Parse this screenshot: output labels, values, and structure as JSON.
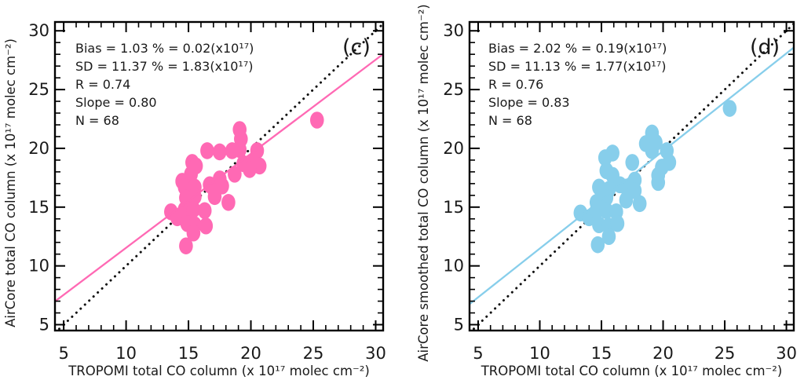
{
  "figure": {
    "background": "#ffffff",
    "text_color": "#1a1a1a",
    "frame_color": "#000000"
  },
  "chart_data": [
    {
      "type": "scatter",
      "panel_label": "(c)",
      "xlabel": "TROPOMI total CO column (x 10¹⁷ molec cm⁻²)",
      "ylabel": "AirCore total CO column (x 10¹⁷ molec cm⁻²)",
      "xlim": [
        4.3,
        30.6
      ],
      "ylim": [
        4.5,
        30.75
      ],
      "ticks": [
        5,
        10,
        15,
        20,
        25,
        30
      ],
      "minor_tick_step": 1,
      "grid": false,
      "marker_color": "#FF69B4",
      "stats_lines": [
        "Bias = 1.03 % = 0.02(x10¹⁷)",
        "SD = 11.37 % = 1.83(x10¹⁷)",
        "R = 0.74",
        "Slope = 0.80",
        "N = 68"
      ],
      "stats": {
        "bias_pct": 1.03,
        "bias_abs": 0.02,
        "sd_pct": 11.37,
        "sd_abs": 1.83,
        "r": 0.74,
        "slope": 0.8,
        "n": 68
      },
      "fit_line": {
        "slope": 0.8,
        "intercept": 3.54,
        "color": "#FF69B4"
      },
      "identity_line": {
        "color": "#111111",
        "style": "dotted"
      },
      "points": [
        [
          25.3,
          22.4
        ],
        [
          19.1,
          21.6
        ],
        [
          19.2,
          20.8
        ],
        [
          19.1,
          19.9
        ],
        [
          18.5,
          19.8
        ],
        [
          17.5,
          19.7
        ],
        [
          16.5,
          19.8
        ],
        [
          20.5,
          19.8
        ],
        [
          19.4,
          18.7
        ],
        [
          20.2,
          18.8
        ],
        [
          20.7,
          18.5
        ],
        [
          19.9,
          18.2
        ],
        [
          18.7,
          17.8
        ],
        [
          15.3,
          18.8
        ],
        [
          15.6,
          18.5
        ],
        [
          15.2,
          17.8
        ],
        [
          14.5,
          17.2
        ],
        [
          17.5,
          17.4
        ],
        [
          16.7,
          16.9
        ],
        [
          14.7,
          16.7
        ],
        [
          15.5,
          16.7
        ],
        [
          17.0,
          16.6
        ],
        [
          17.7,
          16.8
        ],
        [
          14.8,
          15.8
        ],
        [
          15.5,
          15.9
        ],
        [
          17.1,
          15.9
        ],
        [
          18.2,
          15.4
        ],
        [
          13.6,
          14.6
        ],
        [
          14.1,
          14.1
        ],
        [
          14.7,
          14.8
        ],
        [
          15.4,
          14.8
        ],
        [
          16.3,
          14.7
        ],
        [
          14.9,
          13.6
        ],
        [
          15.5,
          13.5
        ],
        [
          16.4,
          13.4
        ],
        [
          15.4,
          12.8
        ],
        [
          14.8,
          11.7
        ]
      ]
    },
    {
      "type": "scatter",
      "panel_label": "(d)",
      "xlabel": "TROPOMI total CO column (x 10¹⁷ molec cm⁻²)",
      "ylabel": "AirCore smoothed total CO column (x 10¹⁷ molec cm⁻²)",
      "xlim": [
        4.3,
        30.6
      ],
      "ylim": [
        4.5,
        30.75
      ],
      "ticks": [
        5,
        10,
        15,
        20,
        25,
        30
      ],
      "minor_tick_step": 1,
      "grid": false,
      "marker_color": "#87CEEB",
      "stats_lines": [
        "Bias = 2.02 % = 0.19(x10¹⁷)",
        "SD = 11.13 % = 1.77(x10¹⁷)",
        "R = 0.76",
        "Slope = 0.83",
        "N = 68"
      ],
      "stats": {
        "bias_pct": 2.02,
        "bias_abs": 0.19,
        "sd_pct": 11.13,
        "sd_abs": 1.77,
        "r": 0.76,
        "slope": 0.83,
        "n": 68
      },
      "fit_line": {
        "slope": 0.83,
        "intercept": 3.18,
        "color": "#87CEEB"
      },
      "identity_line": {
        "color": "#111111",
        "style": "dotted"
      },
      "points": [
        [
          25.4,
          23.4
        ],
        [
          19.1,
          21.3
        ],
        [
          19.4,
          20.5
        ],
        [
          18.6,
          20.4
        ],
        [
          19.1,
          19.8
        ],
        [
          20.3,
          19.8
        ],
        [
          15.9,
          19.6
        ],
        [
          15.3,
          19.2
        ],
        [
          17.5,
          18.8
        ],
        [
          20.5,
          18.8
        ],
        [
          19.9,
          18.4
        ],
        [
          19.6,
          17.7
        ],
        [
          15.9,
          17.7
        ],
        [
          15.4,
          18.1
        ],
        [
          17.7,
          17.3
        ],
        [
          19.6,
          17.1
        ],
        [
          16.5,
          16.9
        ],
        [
          14.8,
          16.7
        ],
        [
          15.6,
          16.5
        ],
        [
          17.0,
          16.7
        ],
        [
          17.7,
          16.4
        ],
        [
          14.6,
          15.4
        ],
        [
          15.4,
          15.8
        ],
        [
          17.0,
          15.6
        ],
        [
          18.1,
          15.3
        ],
        [
          13.3,
          14.5
        ],
        [
          14.0,
          14.1
        ],
        [
          14.6,
          14.7
        ],
        [
          15.4,
          14.7
        ],
        [
          16.2,
          14.6
        ],
        [
          14.8,
          13.5
        ],
        [
          15.6,
          13.4
        ],
        [
          16.3,
          13.6
        ],
        [
          15.6,
          12.5
        ],
        [
          14.7,
          11.8
        ]
      ]
    }
  ]
}
